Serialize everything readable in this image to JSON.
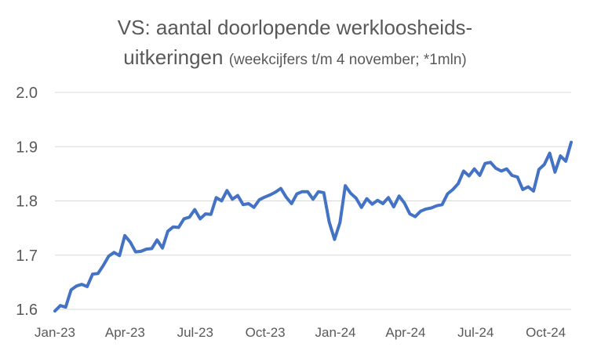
{
  "chart_data": {
    "type": "line",
    "title_line1": "VS: aantal doorlopende werkloosheids-",
    "title_line2": "uitkeringen",
    "title_suffix": "(weekcijfers t/m 4 november; *1mln)",
    "xlabel": "",
    "ylabel": "",
    "ylim": [
      1.6,
      2.0
    ],
    "yticks": [
      "1.6",
      "1.7",
      "1.8",
      "1.9",
      "2.0"
    ],
    "xticks": [
      "Jan-23",
      "Apr-23",
      "Jul-23",
      "Oct-23",
      "Jan-24",
      "Apr-24",
      "Jul-24",
      "Oct-24"
    ],
    "grid": "horizontal",
    "legend": "none",
    "line_color": "#4472C4",
    "series": [
      {
        "values": [
          1.597,
          1.607,
          1.604,
          1.636,
          1.643,
          1.646,
          1.642,
          1.665,
          1.666,
          1.681,
          1.698,
          1.705,
          1.699,
          1.736,
          1.724,
          1.706,
          1.707,
          1.711,
          1.712,
          1.728,
          1.713,
          1.744,
          1.752,
          1.751,
          1.767,
          1.77,
          1.784,
          1.767,
          1.776,
          1.775,
          1.806,
          1.8,
          1.819,
          1.803,
          1.81,
          1.793,
          1.795,
          1.788,
          1.802,
          1.807,
          1.811,
          1.816,
          1.823,
          1.807,
          1.795,
          1.813,
          1.817,
          1.817,
          1.803,
          1.817,
          1.815,
          1.761,
          1.729,
          1.76,
          1.828,
          1.814,
          1.805,
          1.788,
          1.804,
          1.794,
          1.801,
          1.795,
          1.806,
          1.789,
          1.809,
          1.796,
          1.776,
          1.771,
          1.781,
          1.785,
          1.787,
          1.791,
          1.793,
          1.813,
          1.821,
          1.832,
          1.855,
          1.846,
          1.859,
          1.847,
          1.869,
          1.871,
          1.86,
          1.855,
          1.859,
          1.847,
          1.844,
          1.821,
          1.826,
          1.818,
          1.858,
          1.867,
          1.888,
          1.853,
          1.883,
          1.873,
          1.908
        ]
      }
    ]
  }
}
